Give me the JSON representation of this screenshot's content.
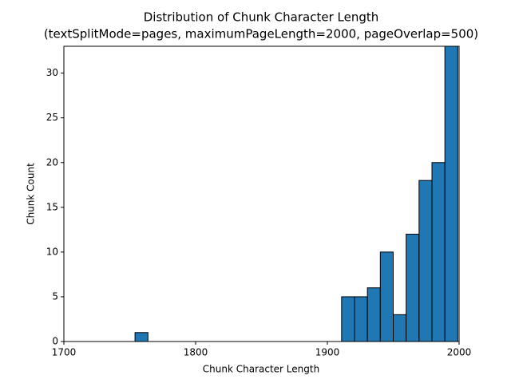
{
  "chart_data": {
    "type": "histogram",
    "title": "Distribution of Chunk Character Length",
    "subtitle": "(textSplitMode=pages, maximumPageLength=2000, pageOverlap=500)",
    "x_label": "Chunk Character Length",
    "y_label": "Chunk Count",
    "bins": [
      1754.0,
      1763.8,
      1773.6,
      1783.4,
      1793.2,
      1803.0,
      1812.8,
      1822.6,
      1832.4,
      1842.2,
      1852.0,
      1861.8,
      1871.6,
      1881.4,
      1891.2,
      1901.0,
      1910.8,
      1920.6,
      1930.4,
      1940.2,
      1950.0,
      1959.8,
      1969.6,
      1979.4,
      1989.2,
      1999.0
    ],
    "values": [
      1,
      0,
      0,
      0,
      0,
      0,
      0,
      0,
      0,
      0,
      0,
      0,
      0,
      0,
      0,
      0,
      5,
      5,
      6,
      10,
      3,
      12,
      18,
      20,
      33
    ],
    "color": "#1f77b4",
    "edge_color": "#000000",
    "xlim": [
      1700,
      2000
    ],
    "xticks": [
      1700,
      1800,
      1900,
      2000
    ],
    "ylim": [
      0,
      33
    ],
    "yticks": [
      0,
      5,
      10,
      15,
      20,
      25,
      30
    ]
  }
}
